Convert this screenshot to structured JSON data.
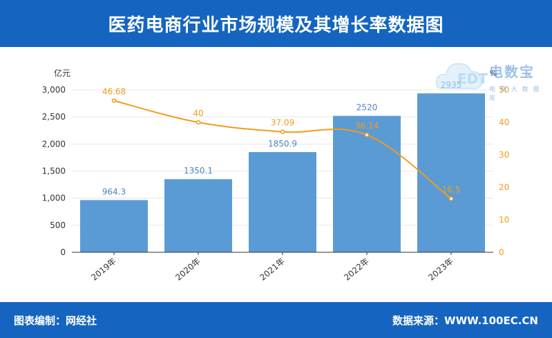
{
  "header": {
    "title": "医药电商行业市场规模及其增长率数据图"
  },
  "footer": {
    "compiler": "图表编制：网经社",
    "source": "数据来源：WWW.100EC.CN"
  },
  "watermark": {
    "name": "电数宝",
    "mark": "EDT",
    "subtitle": "电 商 大 数 据 库"
  },
  "colors": {
    "header": "#1565c0",
    "bar": "#5b9bd5",
    "line": "#f29c1b",
    "bar_label": "#4a86c5"
  },
  "chart_data": {
    "type": "bar",
    "categories": [
      "2019年",
      "2020年",
      "2021年",
      "2022年",
      "2023年"
    ],
    "series": [
      {
        "values": [
          964.3,
          1350.1,
          1850.9,
          2520,
          2935
        ]
      },
      {
        "values": [
          46.68,
          40,
          37.09,
          36.14,
          16.5
        ],
        "render": "line"
      }
    ],
    "bar_labels": [
      "964.3",
      "1350.1",
      "1850.9",
      "2520",
      "2935"
    ],
    "line_labels": [
      "46.68",
      "40",
      "37.09",
      "36.14",
      "16.5"
    ],
    "ylabel": "亿元",
    "y2label": "%",
    "ylim": [
      0,
      3000
    ],
    "y2lim": [
      0,
      50
    ],
    "yticks": [
      "0",
      "500",
      "1,000",
      "1,500",
      "2,000",
      "2,500",
      "3,000"
    ],
    "y2ticks": [
      "0",
      "10",
      "20",
      "30",
      "40",
      "50"
    ],
    "grid": true,
    "legend": "none"
  }
}
